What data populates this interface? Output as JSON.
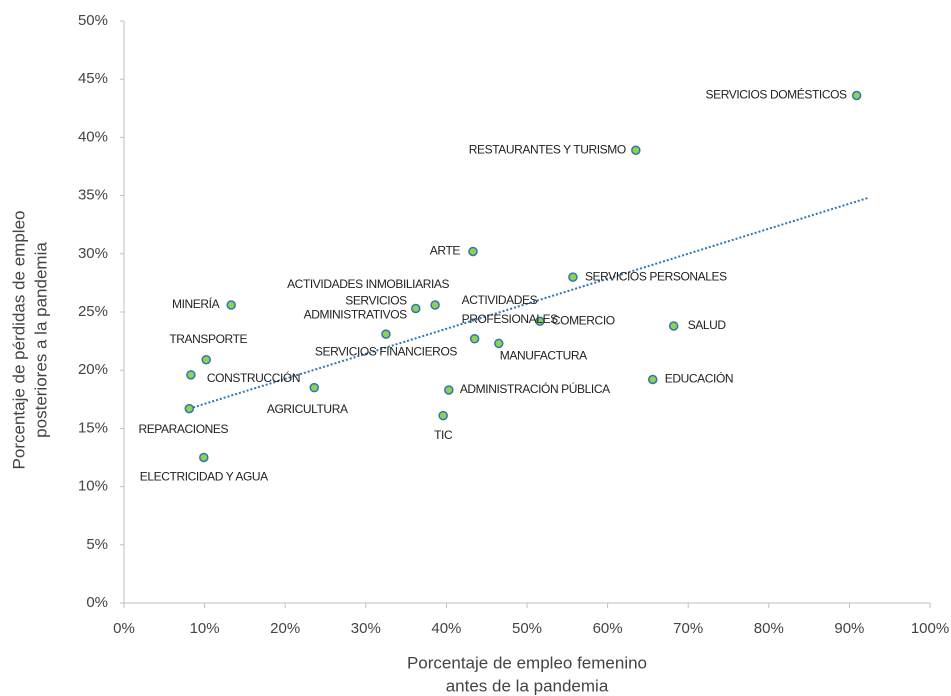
{
  "chart_data": {
    "type": "scatter",
    "xlabel": [
      "Porcentaje de empleo femenino",
      "antes de la pandemia"
    ],
    "ylabel": [
      "Porcentaje de pérdidas de empleo",
      "posteriores a la pandemia"
    ],
    "xlim": [
      0,
      100
    ],
    "ylim": [
      0,
      50
    ],
    "xticks": [
      {
        "value": 0,
        "label": "0%"
      },
      {
        "value": 10,
        "label": "10%"
      },
      {
        "value": 20,
        "label": "20%"
      },
      {
        "value": 30,
        "label": "30%"
      },
      {
        "value": 40,
        "label": "40%"
      },
      {
        "value": 50,
        "label": "50%"
      },
      {
        "value": 60,
        "label": "60%"
      },
      {
        "value": 70,
        "label": "70%"
      },
      {
        "value": 80,
        "label": "80%"
      },
      {
        "value": 90,
        "label": "90%"
      },
      {
        "value": 100,
        "label": "100%"
      }
    ],
    "yticks": [
      {
        "value": 0,
        "label": "0%"
      },
      {
        "value": 5,
        "label": "5%"
      },
      {
        "value": 10,
        "label": "10%"
      },
      {
        "value": 15,
        "label": "15%"
      },
      {
        "value": 20,
        "label": "20%"
      },
      {
        "value": 25,
        "label": "25%"
      },
      {
        "value": 30,
        "label": "30%"
      },
      {
        "value": 35,
        "label": "35%"
      },
      {
        "value": 40,
        "label": "40%"
      },
      {
        "value": 45,
        "label": "45%"
      },
      {
        "value": 50,
        "label": "50%"
      }
    ],
    "points": {
      "color": "#92d050",
      "edgecolor": "#2e75b6",
      "labels": [
        "SERVICIOS DOMÉSTICOS",
        "RESTAURANTES Y TURISMO",
        "ARTE",
        "SERVICIOS PERSONALES",
        "MINERÍA",
        "ACTIVIDADES INMOBILIARIAS",
        [
          "SERVICIOS",
          "ADMINISTRATIVOS"
        ],
        "COMERCIO",
        "SALUD",
        "SERVICIOS FINANCIEROS",
        [
          "ACTIVIDADES",
          "PROFESIONALES"
        ],
        "MANUFACTURA",
        "TRANSPORTE",
        "CONSTRUCCIÓN",
        "EDUCACIÓN",
        "AGRICULTURA",
        "ADMINISTRACIÓN PÚBLICA",
        "REPARACIONES",
        "TIC",
        "ELECTRICIDAD Y AGUA"
      ],
      "x": [
        90.9,
        63.5,
        43.3,
        55.7,
        13.3,
        38.6,
        36.2,
        51.6,
        68.2,
        32.5,
        43.5,
        46.5,
        10.2,
        8.3,
        65.6,
        23.6,
        40.3,
        8.1,
        39.6,
        9.9
      ],
      "y": [
        43.6,
        38.9,
        30.2,
        28.0,
        25.6,
        25.6,
        25.3,
        24.2,
        23.8,
        23.1,
        22.7,
        22.3,
        20.9,
        19.6,
        19.2,
        18.5,
        18.3,
        16.7,
        16.1,
        12.5
      ]
    },
    "trendline": {
      "color": "#2e75b6",
      "x": [
        8.1,
        92.3
      ],
      "y": [
        16.7,
        34.8
      ]
    }
  }
}
